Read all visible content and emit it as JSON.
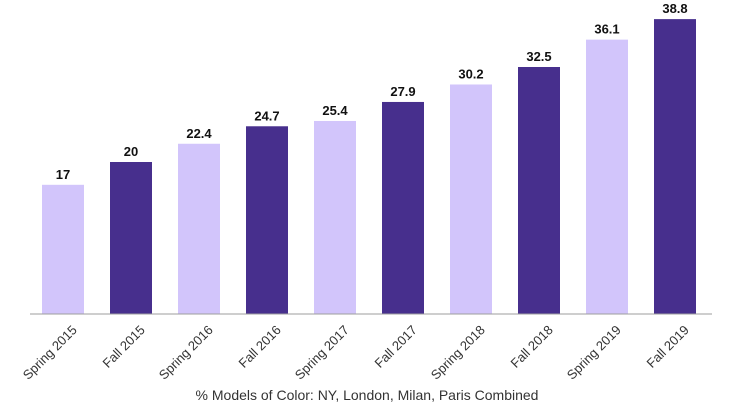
{
  "chart_data": {
    "type": "bar",
    "categories": [
      "Spring 2015",
      "Fall 2015",
      "Spring 2016",
      "Fall 2016",
      "Spring 2017",
      "Fall 2017",
      "Spring 2018",
      "Fall 2018",
      "Spring 2019",
      "Fall 2019"
    ],
    "values": [
      17,
      20,
      22.4,
      24.7,
      25.4,
      27.9,
      30.2,
      32.5,
      36.1,
      38.8
    ],
    "value_labels": [
      "17",
      "20",
      "22.4",
      "24.7",
      "25.4",
      "27.9",
      "30.2",
      "32.5",
      "36.1",
      "38.8"
    ],
    "title": "",
    "xlabel": "% Models of Color: NY, London, Milan, Paris Combined",
    "ylabel": "",
    "ylim": [
      0,
      40
    ],
    "grid": false,
    "legend": "none",
    "colors": {
      "spring": "#d2c5fb",
      "fall": "#472f8d",
      "axis": "#9e9e9e"
    }
  }
}
